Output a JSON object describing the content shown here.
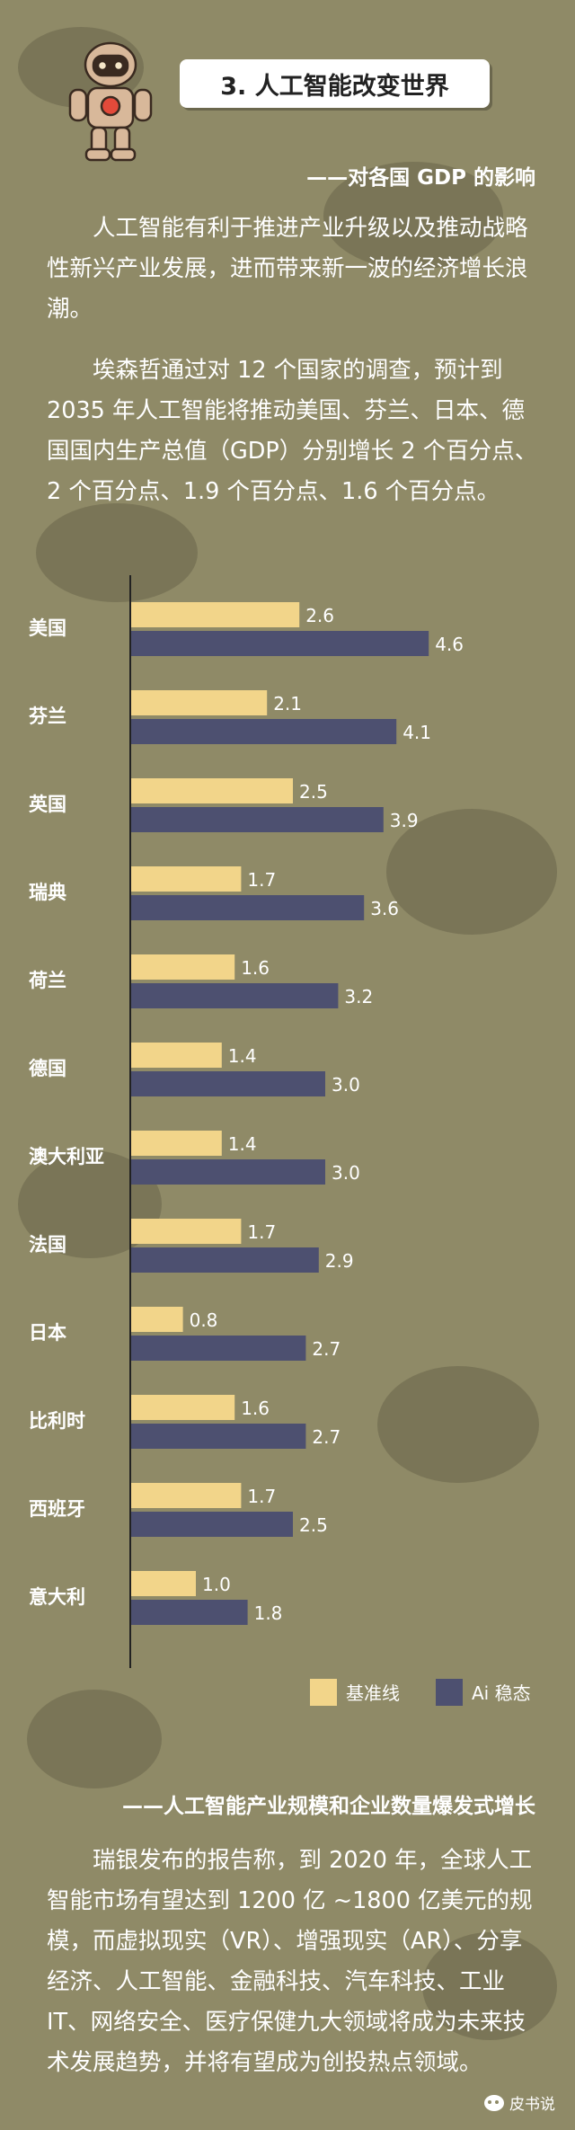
{
  "header": {
    "title": "3. 人工智能改变世界",
    "subtitle": "——对各国 GDP 的影响"
  },
  "intro": {
    "p1": "人工智能有利于推进产业升级以及推动战略性新兴产业发展，进而带来新一波的经济增长浪潮。",
    "p2": "埃森哲通过对 12 个国家的调查，预计到2035 年人工智能将推动美国、芬兰、日本、德国国内生产总值（GDP）分别增长 2 个百分点、2 个百分点、1.9 个百分点、1.6 个百分点。"
  },
  "chart_data": {
    "type": "bar",
    "orientation": "horizontal",
    "categories": [
      "美国",
      "芬兰",
      "英国",
      "瑞典",
      "荷兰",
      "德国",
      "澳大利亚",
      "法国",
      "日本",
      "比利时",
      "西班牙",
      "意大利"
    ],
    "series": [
      {
        "name": "基准线",
        "color": "#f2d58a",
        "values": [
          2.6,
          2.1,
          2.5,
          1.7,
          1.6,
          1.4,
          1.4,
          1.7,
          0.8,
          1.6,
          1.7,
          1.0
        ]
      },
      {
        "name": "Ai 稳态",
        "color": "#4d5070",
        "values": [
          4.6,
          4.1,
          3.9,
          3.6,
          3.2,
          3.0,
          3.0,
          2.9,
          2.7,
          2.7,
          2.5,
          1.8
        ]
      }
    ],
    "value_labels": [
      [
        "2.6",
        "2.1",
        "2.5",
        "1.7",
        "1.6",
        "1.4",
        "1.4",
        "1.7",
        "0.8",
        "1.6",
        "1.7",
        "1.0"
      ],
      [
        "4.6",
        "4.1",
        "3.9",
        "3.6",
        "3.2",
        "3.0",
        "3.0",
        "2.9",
        "2.7",
        "2.7",
        "2.5",
        "1.8"
      ]
    ],
    "xlim": [
      0,
      4.8
    ],
    "legend_position": "bottom-right",
    "grid": false
  },
  "section2": {
    "subtitle": "——人工智能产业规模和企业数量爆发式增长",
    "p1": "瑞银发布的报告称，到 2020 年，全球人工智能市场有望达到 1200 亿 ~1800 亿美元的规模，而虚拟现实（VR）、增强现实（AR）、分享经济、人工智能、金融科技、汽车科技、工业 IT、网络安全、医疗保健九大领域将成为未来技术发展趋势，并将有望成为创投热点领域。"
  },
  "watermark": {
    "text": "皮书说",
    "icon": "wechat-icon"
  }
}
